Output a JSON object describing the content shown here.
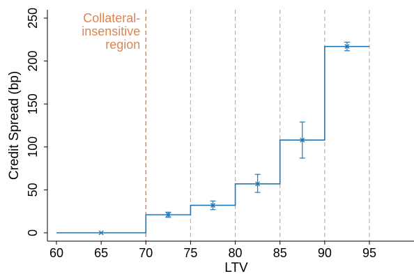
{
  "chart_data": {
    "type": "line",
    "step": true,
    "xlabel": "LTV",
    "ylabel": "Credit Spread (bp)",
    "xlim": [
      60,
      99
    ],
    "ylim": [
      -8,
      258
    ],
    "x_ticks": [
      60,
      65,
      70,
      75,
      80,
      85,
      90,
      95
    ],
    "y_ticks": [
      0,
      50,
      100,
      150,
      200,
      250
    ],
    "reference_lines": {
      "threshold": 70,
      "bins": [
        75,
        80,
        85,
        90,
        95
      ]
    },
    "annotation": {
      "lines": [
        "Collateral-",
        "insensitive",
        "region"
      ],
      "color": "#dd8452"
    },
    "series": [
      {
        "x": [
          65,
          72.5,
          77.5,
          82.5,
          87.5,
          92.5
        ],
        "y": [
          0,
          21,
          32,
          57,
          108,
          217
        ],
        "ci_low": [
          null,
          18,
          27,
          47,
          87,
          212
        ],
        "ci_high": [
          null,
          24,
          37,
          68,
          129,
          222
        ],
        "step_ranges": [
          [
            60,
            70
          ],
          [
            70,
            75
          ],
          [
            75,
            80
          ],
          [
            80,
            85
          ],
          [
            85,
            90
          ],
          [
            90,
            95
          ]
        ],
        "color": "#1f77b4"
      }
    ],
    "grid": false
  }
}
